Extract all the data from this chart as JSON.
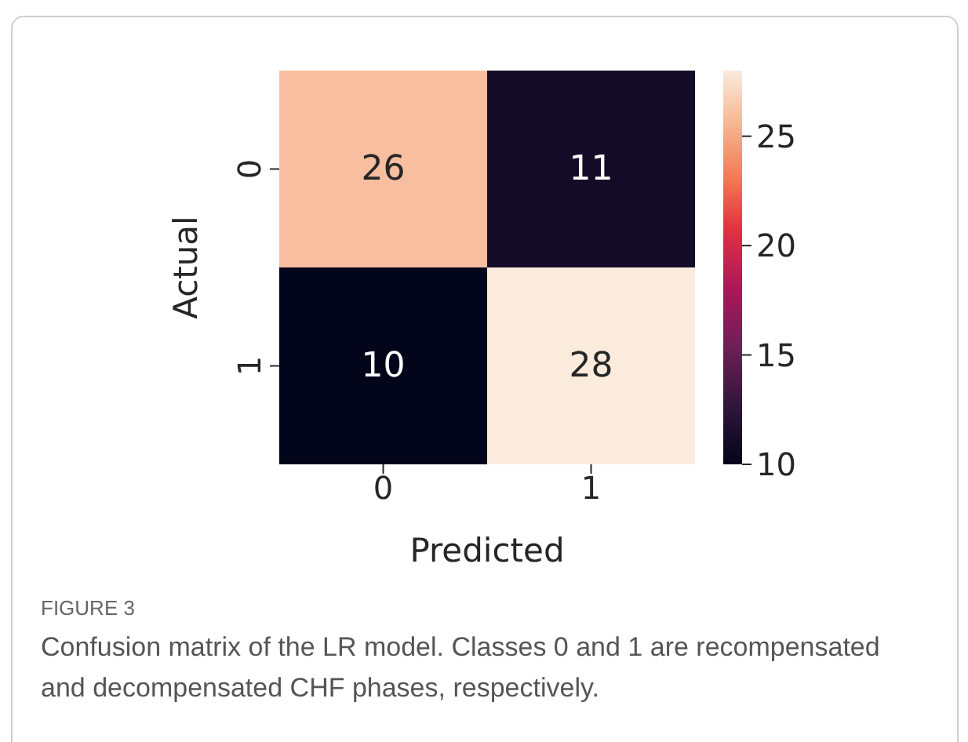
{
  "chart_data": {
    "type": "heatmap",
    "categories": [
      "0",
      "1"
    ],
    "y_categories": [
      "0",
      "1"
    ],
    "cells": [
      [
        26,
        11
      ],
      [
        10,
        28
      ]
    ],
    "xlabel": "Predicted",
    "ylabel": "Actual",
    "clim": [
      10,
      28
    ],
    "cticks": [
      10,
      15,
      20,
      25
    ],
    "data_labels": true,
    "annotations": [
      "FIGURE 3",
      "Confusion matrix of the LR model. Classes 0 and 1 are recompensated and decompensated CHF phases, respectively."
    ]
  }
}
